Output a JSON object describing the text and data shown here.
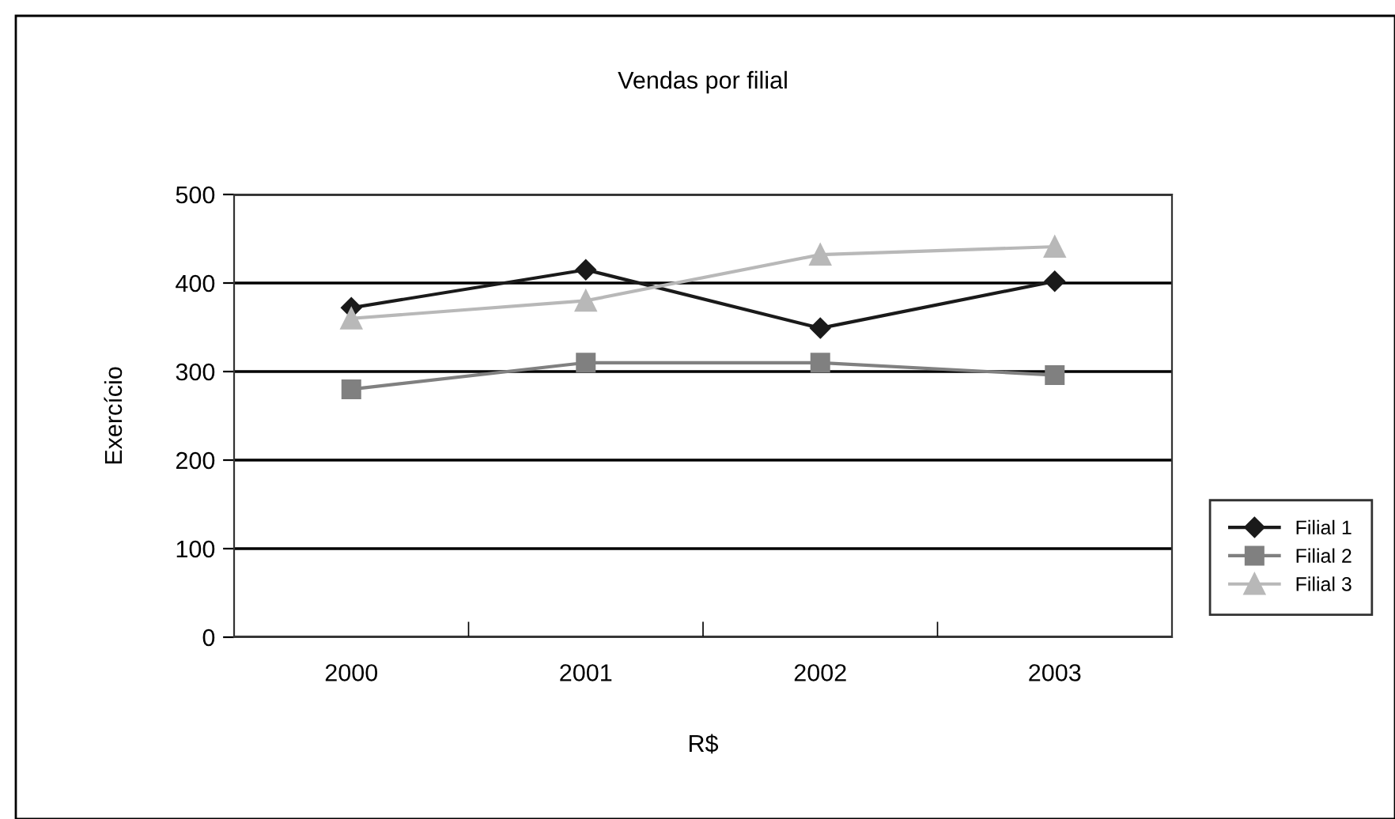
{
  "chart_data": {
    "type": "line",
    "title": "Vendas por filial",
    "xlabel": "R$",
    "ylabel": "Exercício",
    "categories": [
      "2000",
      "2001",
      "2002",
      "2003"
    ],
    "series": [
      {
        "name": "Filial 1",
        "color": "#1a1a1a",
        "marker": "diamond",
        "values": [
          372,
          415,
          349,
          402
        ]
      },
      {
        "name": "Filial 2",
        "color": "#808080",
        "marker": "square",
        "values": [
          280,
          310,
          310,
          296
        ]
      },
      {
        "name": "Filial 3",
        "color": "#b8b8b8",
        "marker": "triangle",
        "values": [
          360,
          380,
          432,
          441
        ]
      }
    ],
    "ylim": [
      0,
      500
    ],
    "yticks": [
      0,
      100,
      200,
      300,
      400,
      500
    ],
    "grid": "y",
    "legend": "right",
    "line_style": "solid"
  }
}
